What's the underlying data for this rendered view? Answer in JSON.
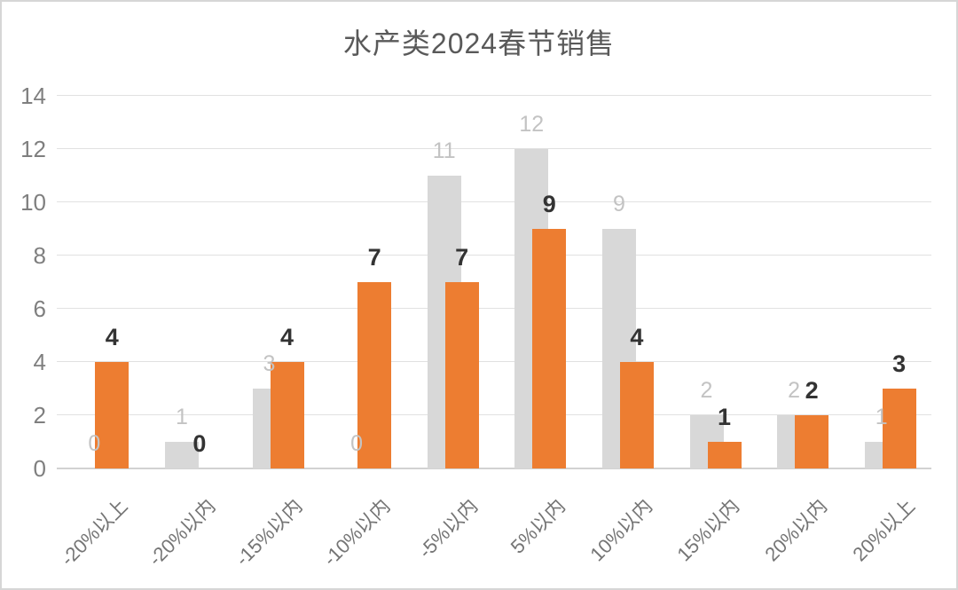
{
  "chart_data": {
    "type": "bar",
    "title": "水产类2024春节销售",
    "categories": [
      "-20%以上",
      "-20%以内",
      "-15%以内",
      "-10%以内",
      "-5%以内",
      "5%以内",
      "10%以内",
      "15%以内",
      "20%以内",
      "20%以上"
    ],
    "series": [
      {
        "name": "gray",
        "color": "#d8d8d8",
        "label_color": "#c3c3c3",
        "label_bold": false,
        "values": [
          0,
          1,
          3,
          0,
          11,
          12,
          9,
          2,
          2,
          1
        ]
      },
      {
        "name": "orange",
        "color": "#ed7d31",
        "label_color": "#333333",
        "label_bold": true,
        "values": [
          4,
          0,
          4,
          7,
          7,
          9,
          4,
          1,
          2,
          3
        ]
      }
    ],
    "ylim": [
      0,
      14
    ],
    "yticks": [
      0,
      2,
      4,
      6,
      8,
      10,
      12,
      14
    ],
    "grid": true,
    "legend": "none",
    "xlabel": "",
    "ylabel": "",
    "colors": {
      "title": "#595959",
      "axis_text": "#7f7f7f",
      "gridline": "#e1e1e1",
      "frame_border": "#d6d6d6"
    }
  }
}
